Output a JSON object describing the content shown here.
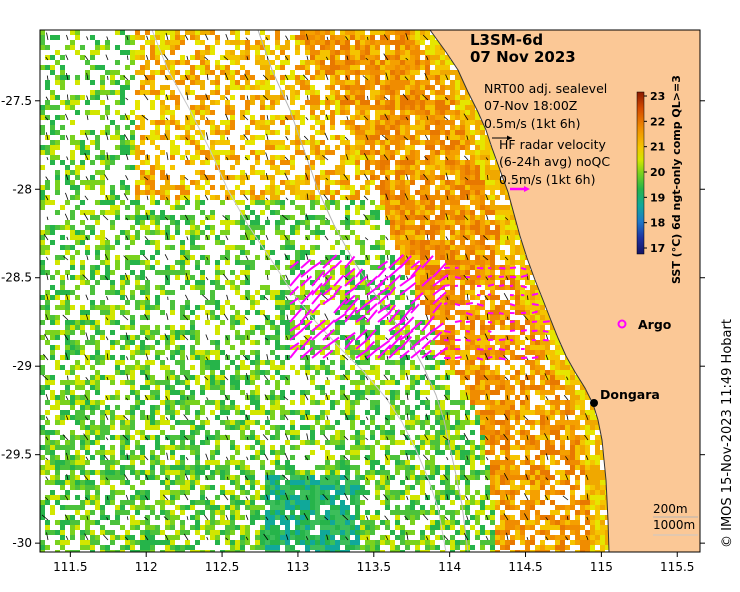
{
  "title": {
    "product": "L3SM-6d",
    "date": "07 Nov 2023"
  },
  "sealevel_legend": {
    "line1": "NRT00 adj. sealevel",
    "line2": "07-Nov 18:00Z",
    "line3": "0.5m/s (1kt 6h)"
  },
  "radar_legend": {
    "line1": "HF radar velocity",
    "line2": "(6-24h avg) noQC",
    "line3": "0.5m/s (1kt 6h)"
  },
  "colorbar": {
    "label": "SST (°C) 6d ngt-only comp QL>=3",
    "ticks": [
      "23",
      "22",
      "21",
      "20",
      "19",
      "18",
      "17"
    ],
    "colors": [
      "#8b1a00",
      "#d44a00",
      "#f08c00",
      "#f5c400",
      "#d2e600",
      "#7ad21e",
      "#26b44a",
      "#10a89a",
      "#1e78c8",
      "#1e32a0",
      "#141464"
    ]
  },
  "places": {
    "argo": "Argo",
    "dongara": "Dongara"
  },
  "contours": {
    "c200": "200m",
    "c1000": "1000m"
  },
  "credit": "© IMOS 15-Nov-2023 11:49 Hobart",
  "chart_data": {
    "type": "heatmap",
    "x_ticks": [
      "111.5",
      "112",
      "112.5",
      "113",
      "113.5",
      "114",
      "114.5",
      "115",
      "115.5"
    ],
    "y_ticks": [
      "-27.5",
      "-28",
      "-28.5",
      "-29",
      "-29.5",
      "-30"
    ],
    "xlim": [
      111.3,
      115.65
    ],
    "ylim": [
      -30.05,
      -27.1
    ],
    "colors": {
      "land": "#fbc896",
      "coast": "#333333",
      "radar_vectors": "#ff00ff",
      "sealevel_vectors": "#000000"
    }
  }
}
